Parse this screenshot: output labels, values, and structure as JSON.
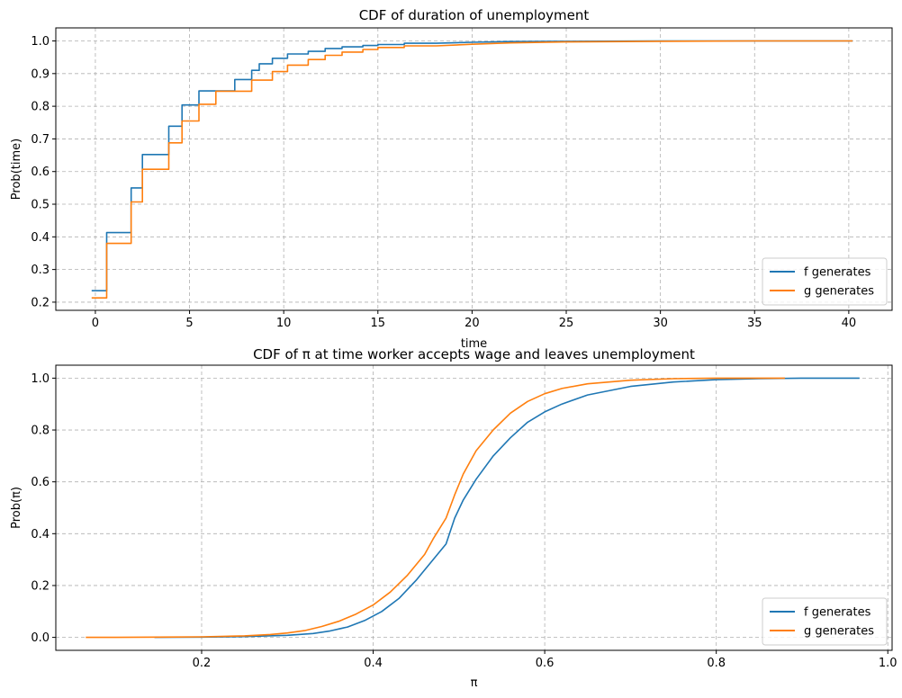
{
  "chart_data": [
    {
      "type": "line",
      "title": "CDF of duration of unemployment",
      "xlabel": "time",
      "ylabel": "Prob(time)",
      "xlim": [
        -2.1,
        42.3
      ],
      "ylim": [
        0.175,
        1.04
      ],
      "xticks": [
        0,
        5,
        10,
        15,
        20,
        25,
        30,
        35,
        40
      ],
      "yticks": [
        0.2,
        0.3,
        0.4,
        0.5,
        0.6,
        0.7,
        0.8,
        0.9,
        1.0
      ],
      "xtick_labels": [
        "0",
        "5",
        "10",
        "15",
        "20",
        "25",
        "30",
        "35",
        "40"
      ],
      "ytick_labels": [
        "0.2",
        "0.3",
        "0.4",
        "0.5",
        "0.6",
        "0.7",
        "0.8",
        "0.9",
        "1.0"
      ],
      "grid": true,
      "legend_position": "bottom-right",
      "series": [
        {
          "name": "f generates",
          "color": "#1f77b4",
          "x": [
            -0.2,
            0.6,
            0.6,
            1.4,
            1.4,
            1.9,
            1.9,
            2.5,
            2.5,
            3.4,
            3.4,
            3.9,
            3.9,
            4.6,
            4.6,
            5.5,
            5.5,
            6.4,
            6.4,
            7.4,
            7.4,
            8.3,
            8.3,
            8.7,
            8.7,
            9.4,
            9.4,
            10.2,
            10.2,
            11.3,
            11.3,
            12.2,
            12.2,
            13.1,
            13.1,
            14.2,
            14.2,
            15.0,
            15.0,
            16.4,
            16.4,
            18.1,
            20.0,
            22.0,
            25.0,
            30.0,
            35.0,
            40.2
          ],
          "y": [
            0.235,
            0.235,
            0.413,
            0.413,
            0.413,
            0.413,
            0.55,
            0.55,
            0.652,
            0.652,
            0.652,
            0.652,
            0.739,
            0.739,
            0.804,
            0.804,
            0.847,
            0.847,
            0.847,
            0.847,
            0.882,
            0.882,
            0.91,
            0.91,
            0.93,
            0.93,
            0.947,
            0.947,
            0.96,
            0.96,
            0.968,
            0.968,
            0.977,
            0.977,
            0.982,
            0.982,
            0.986,
            0.986,
            0.989,
            0.989,
            0.993,
            0.993,
            0.996,
            0.998,
            0.999,
            1.0,
            1.0,
            1.0
          ]
        },
        {
          "name": "g generates",
          "color": "#ff7f0e",
          "x": [
            -0.2,
            0.3,
            0.3,
            0.6,
            0.6,
            1.4,
            1.4,
            1.9,
            1.9,
            2.5,
            2.5,
            3.4,
            3.4,
            3.9,
            3.9,
            4.6,
            4.6,
            5.5,
            5.5,
            6.4,
            6.4,
            7.4,
            7.4,
            8.3,
            8.3,
            9.4,
            9.4,
            10.2,
            10.2,
            11.3,
            11.3,
            12.2,
            12.2,
            13.1,
            13.1,
            14.2,
            14.2,
            15.0,
            15.0,
            16.4,
            16.4,
            18.1,
            20.0,
            22.0,
            25.0,
            30.0,
            35.0,
            40.2
          ],
          "y": [
            0.213,
            0.213,
            0.213,
            0.213,
            0.38,
            0.38,
            0.38,
            0.38,
            0.507,
            0.507,
            0.607,
            0.607,
            0.607,
            0.607,
            0.688,
            0.688,
            0.755,
            0.755,
            0.806,
            0.806,
            0.846,
            0.846,
            0.846,
            0.846,
            0.88,
            0.88,
            0.906,
            0.906,
            0.926,
            0.926,
            0.943,
            0.943,
            0.956,
            0.956,
            0.966,
            0.966,
            0.974,
            0.974,
            0.98,
            0.98,
            0.985,
            0.985,
            0.99,
            0.994,
            0.997,
            0.999,
            1.0,
            1.0
          ]
        }
      ]
    },
    {
      "type": "line",
      "title": "CDF of π at time worker accepts wage and leaves unemployment",
      "xlabel": "π",
      "ylabel": "Prob(π)",
      "xlim": [
        0.03,
        1.005
      ],
      "ylim": [
        -0.05,
        1.05
      ],
      "xticks": [
        0.2,
        0.4,
        0.6,
        0.8,
        1.0
      ],
      "yticks": [
        0.0,
        0.2,
        0.4,
        0.6,
        0.8,
        1.0
      ],
      "xtick_labels": [
        "0.2",
        "0.4",
        "0.6",
        "0.8",
        "1.0"
      ],
      "ytick_labels": [
        "0.0",
        "0.2",
        "0.4",
        "0.6",
        "0.8",
        "1.0"
      ],
      "grid": true,
      "legend_position": "bottom-right",
      "series": [
        {
          "name": "f generates",
          "color": "#1f77b4",
          "x": [
            0.145,
            0.2,
            0.25,
            0.3,
            0.33,
            0.35,
            0.37,
            0.39,
            0.41,
            0.43,
            0.45,
            0.47,
            0.485,
            0.495,
            0.505,
            0.52,
            0.54,
            0.56,
            0.58,
            0.6,
            0.62,
            0.65,
            0.7,
            0.75,
            0.8,
            0.85,
            0.9,
            0.967
          ],
          "y": [
            0.0,
            0.001,
            0.003,
            0.008,
            0.015,
            0.025,
            0.04,
            0.065,
            0.1,
            0.15,
            0.22,
            0.3,
            0.36,
            0.46,
            0.53,
            0.61,
            0.7,
            0.77,
            0.83,
            0.87,
            0.9,
            0.935,
            0.968,
            0.985,
            0.994,
            0.998,
            1.0,
            1.0
          ]
        },
        {
          "name": "g generates",
          "color": "#ff7f0e",
          "x": [
            0.065,
            0.1,
            0.15,
            0.2,
            0.25,
            0.28,
            0.3,
            0.32,
            0.34,
            0.36,
            0.38,
            0.4,
            0.42,
            0.44,
            0.46,
            0.47,
            0.485,
            0.495,
            0.505,
            0.52,
            0.54,
            0.56,
            0.58,
            0.6,
            0.62,
            0.65,
            0.7,
            0.75,
            0.8,
            0.88
          ],
          "y": [
            0.0,
            0.0,
            0.001,
            0.002,
            0.006,
            0.011,
            0.017,
            0.026,
            0.042,
            0.062,
            0.09,
            0.125,
            0.175,
            0.24,
            0.32,
            0.38,
            0.46,
            0.55,
            0.63,
            0.72,
            0.8,
            0.865,
            0.91,
            0.94,
            0.96,
            0.978,
            0.992,
            0.998,
            1.0,
            1.0
          ]
        }
      ]
    }
  ]
}
